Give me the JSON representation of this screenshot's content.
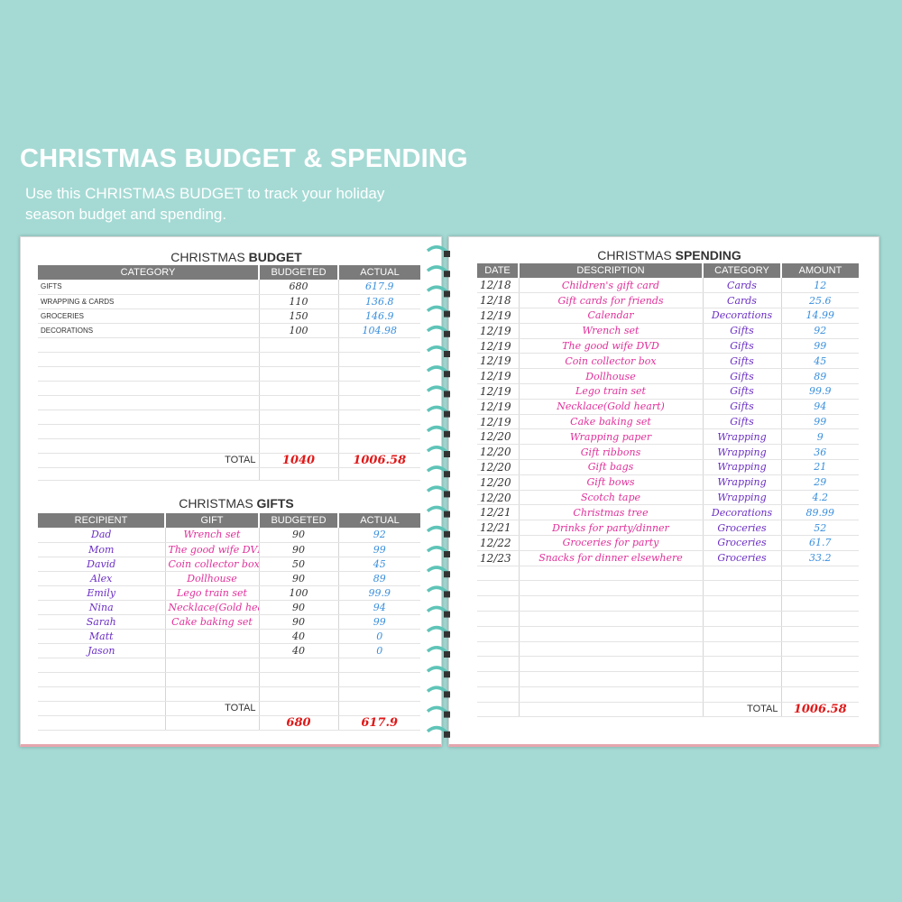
{
  "header": {
    "title": "CHRISTMAS BUDGET & SPENDING",
    "subtitle": "Use this CHRISTMAS BUDGET to track your holiday season budget and spending."
  },
  "budget": {
    "title_prefix": "CHRISTMAS ",
    "title_bold": "BUDGET",
    "columns": [
      "CATEGORY",
      "BUDGETED",
      "ACTUAL"
    ],
    "rows": [
      [
        "GIFTS",
        "680",
        "617.9"
      ],
      [
        "WRAPPING & CARDS",
        "110",
        "136.8"
      ],
      [
        "GROCERIES",
        "150",
        "146.9"
      ],
      [
        "DECORATIONS",
        "100",
        "104.98"
      ]
    ],
    "total_label": "TOTAL",
    "total_budgeted": "1040",
    "total_actual": "1006.58"
  },
  "gifts": {
    "title_prefix": "CHRISTMAS ",
    "title_bold": "GIFTS",
    "columns": [
      "RECIPIENT",
      "GIFT",
      "BUDGETED",
      "ACTUAL"
    ],
    "rows": [
      [
        "Dad",
        "Wrench set",
        "90",
        "92"
      ],
      [
        "Mom",
        "The good wife DVD",
        "90",
        "99"
      ],
      [
        "David",
        "Coin collector box",
        "50",
        "45"
      ],
      [
        "Alex",
        "Dollhouse",
        "90",
        "89"
      ],
      [
        "Emily",
        "Lego train set",
        "100",
        "99.9"
      ],
      [
        "Nina",
        "Necklace(Gold heart)",
        "90",
        "94"
      ],
      [
        "Sarah",
        "Cake baking set",
        "90",
        "99"
      ],
      [
        "Matt",
        "",
        "40",
        "0"
      ],
      [
        "Jason",
        "",
        "40",
        "0"
      ]
    ],
    "total_label": "TOTAL",
    "total_budgeted": "680",
    "total_actual": "617.9"
  },
  "spending": {
    "title_prefix": "CHRISTMAS ",
    "title_bold": "SPENDING",
    "columns": [
      "DATE",
      "DESCRIPTION",
      "CATEGORY",
      "AMOUNT"
    ],
    "rows": [
      [
        "12/18",
        "Children's gift card",
        "Cards",
        "12"
      ],
      [
        "12/18",
        "Gift cards for friends",
        "Cards",
        "25.6"
      ],
      [
        "12/19",
        "Calendar",
        "Decorations",
        "14.99"
      ],
      [
        "12/19",
        "Wrench set",
        "Gifts",
        "92"
      ],
      [
        "12/19",
        "The good wife DVD",
        "Gifts",
        "99"
      ],
      [
        "12/19",
        "Coin collector box",
        "Gifts",
        "45"
      ],
      [
        "12/19",
        "Dollhouse",
        "Gifts",
        "89"
      ],
      [
        "12/19",
        "Lego train set",
        "Gifts",
        "99.9"
      ],
      [
        "12/19",
        "Necklace(Gold heart)",
        "Gifts",
        "94"
      ],
      [
        "12/19",
        "Cake baking set",
        "Gifts",
        "99"
      ],
      [
        "12/20",
        "Wrapping paper",
        "Wrapping",
        "9"
      ],
      [
        "12/20",
        "Gift ribbons",
        "Wrapping",
        "36"
      ],
      [
        "12/20",
        "Gift bags",
        "Wrapping",
        "21"
      ],
      [
        "12/20",
        "Gift bows",
        "Wrapping",
        "29"
      ],
      [
        "12/20",
        "Scotch tape",
        "Wrapping",
        "4.2"
      ],
      [
        "12/21",
        "Christmas tree",
        "Decorations",
        "89.99"
      ],
      [
        "12/21",
        "Drinks for party/dinner",
        "Groceries",
        "52"
      ],
      [
        "12/22",
        "Groceries for party",
        "Groceries",
        "61.7"
      ],
      [
        "12/23",
        "Snacks for dinner elsewhere",
        "Groceries",
        "33.2"
      ]
    ],
    "total_label": "TOTAL",
    "total_amount": "1006.58"
  },
  "colors": {
    "background": "#a5dad4",
    "header_gray": "#7b7b7b",
    "pink_ink": "#e0309a",
    "purple_ink": "#6b2fc4",
    "blue_ink": "#3a8fdc",
    "total_red": "#e01818",
    "spiral": "#5fc4b8"
  }
}
